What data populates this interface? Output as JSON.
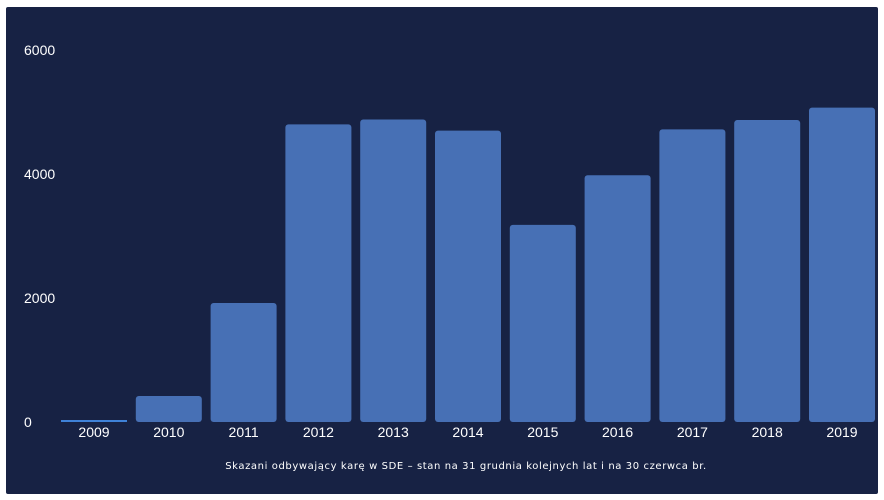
{
  "chart_data": {
    "type": "bar",
    "categories": [
      "2009",
      "2010",
      "2011",
      "2012",
      "2013",
      "2014",
      "2015",
      "2016",
      "2017",
      "2018",
      "2019"
    ],
    "values": [
      20,
      420,
      1920,
      4800,
      4880,
      4700,
      3180,
      3980,
      4720,
      4870,
      5070
    ],
    "y_ticks": [
      "0",
      "2000",
      "4000",
      "6000"
    ],
    "ylim": [
      0,
      6000
    ],
    "caption": "Skazani odbywający karę w SDE – stan na 31 grudnia kolejnych lat i na 30 czerwca br.",
    "colors": {
      "background": "#172244",
      "bar": "#4770b5",
      "zero_bar": "#3f82d8",
      "text": "#ffffff"
    }
  }
}
